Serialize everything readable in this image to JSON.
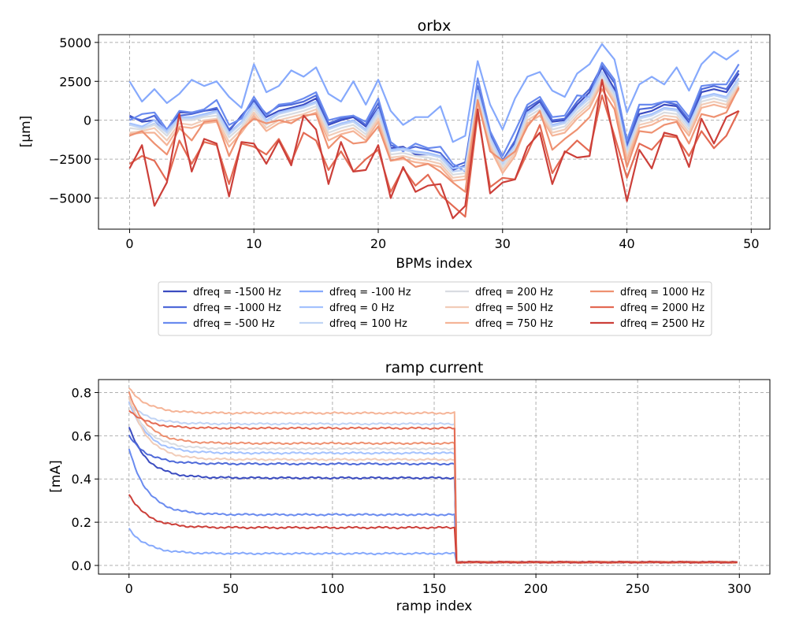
{
  "colors": [
    "#3b4cc0",
    "#4f6ad9",
    "#6a8bef",
    "#86a9fc",
    "#a4c2fe",
    "#c0d4f5",
    "#d9dce1",
    "#f1ccb8",
    "#f5b497",
    "#ee9171",
    "#e36a53",
    "#cc3f39"
  ],
  "chart_data": [
    {
      "type": "line",
      "title": "orbx",
      "xlabel": "BPMs index",
      "ylabel": "[μm]",
      "xlim": [
        -2.5,
        51.5
      ],
      "ylim": [
        -7000,
        5500
      ],
      "xticks": [
        0,
        10,
        20,
        30,
        40,
        50
      ],
      "yticks": [
        -5000,
        -2500,
        0,
        2500,
        5000
      ],
      "ytick_labels": [
        "−5000",
        "−2500",
        "0",
        "2500",
        "5000"
      ],
      "grid": true,
      "x_start": 0,
      "series": [
        {
          "name": "dfreq = -1500 Hz",
          "values": [
            300,
            -100,
            0,
            -800,
            500,
            500,
            600,
            700,
            -700,
            300,
            1200,
            200,
            600,
            800,
            1000,
            1400,
            -300,
            0,
            200,
            -400,
            800,
            -1800,
            -1700,
            -2200,
            -2200,
            -2300,
            -3200,
            -2900,
            2000,
            -1000,
            -2800,
            -1500,
            600,
            1200,
            -100,
            0,
            1000,
            1800,
            3400,
            2000,
            -1800,
            400,
            600,
            1000,
            900,
            -200,
            1800,
            2000,
            1800,
            3000
          ]
        },
        {
          "name": "dfreq = -1000 Hz",
          "values": [
            200,
            0,
            300,
            -800,
            300,
            400,
            600,
            800,
            -600,
            200,
            1300,
            400,
            900,
            1000,
            1200,
            1600,
            -200,
            100,
            300,
            -300,
            1100,
            -1600,
            -1900,
            -1700,
            -1900,
            -2100,
            -3000,
            -2700,
            2200,
            -900,
            -2600,
            -1300,
            800,
            1300,
            0,
            100,
            1200,
            2000,
            3500,
            2400,
            -1600,
            700,
            800,
            1200,
            1000,
            0,
            2000,
            2200,
            2000,
            3200
          ]
        },
        {
          "name": "dfreq = -500 Hz",
          "values": [
            0,
            400,
            500,
            -600,
            600,
            500,
            700,
            1300,
            -300,
            100,
            1500,
            300,
            1000,
            1100,
            1400,
            1800,
            0,
            200,
            300,
            -100,
            1400,
            -1400,
            -2000,
            -1500,
            -1800,
            -1700,
            -2800,
            -3300,
            2700,
            -700,
            -2300,
            -700,
            1000,
            1500,
            200,
            300,
            1600,
            1500,
            3700,
            2600,
            -1300,
            1000,
            1000,
            1200,
            1200,
            200,
            2200,
            2300,
            2300,
            3600
          ]
        },
        {
          "name": "dfreq = -100 Hz",
          "values": [
            2500,
            1200,
            2000,
            1100,
            1700,
            2600,
            2200,
            2500,
            1500,
            800,
            3600,
            1800,
            2200,
            3200,
            2800,
            3400,
            1700,
            1200,
            2500,
            1000,
            2600,
            600,
            -300,
            200,
            200,
            900,
            -1400,
            -1000,
            3800,
            1000,
            -600,
            1400,
            2800,
            3100,
            1900,
            1500,
            3000,
            3600,
            4900,
            3900,
            500,
            2300,
            2800,
            2300,
            3400,
            1900,
            3600,
            4400,
            3900,
            4500
          ]
        },
        {
          "name": "dfreq = 0 Hz",
          "values": [
            -200,
            -400,
            0,
            -700,
            200,
            200,
            400,
            600,
            -800,
            -100,
            1100,
            0,
            500,
            700,
            900,
            1200,
            -500,
            -200,
            0,
            -600,
            700,
            -1900,
            -1800,
            -2000,
            -2100,
            -2300,
            -3100,
            -3000,
            1900,
            -1100,
            -2700,
            -1600,
            500,
            1000,
            -300,
            -100,
            800,
            1600,
            3100,
            1800,
            -1900,
            200,
            400,
            800,
            700,
            -300,
            1500,
            1700,
            1500,
            2700
          ]
        },
        {
          "name": "dfreq = 100 Hz",
          "values": [
            -300,
            -500,
            -200,
            -800,
            100,
            100,
            300,
            500,
            -900,
            -200,
            900,
            -100,
            400,
            600,
            800,
            1100,
            -600,
            -300,
            -100,
            -700,
            500,
            -2000,
            -1900,
            -2100,
            -2200,
            -2400,
            -3300,
            -3200,
            1700,
            -1200,
            -2800,
            -1700,
            400,
            900,
            -400,
            -200,
            700,
            1400,
            3000,
            1700,
            -2000,
            100,
            300,
            700,
            600,
            -400,
            1400,
            1600,
            1400,
            2600
          ]
        },
        {
          "name": "dfreq = 200 Hz",
          "values": [
            -500,
            -600,
            -300,
            -1000,
            0,
            0,
            200,
            300,
            -1100,
            -400,
            700,
            -300,
            200,
            400,
            600,
            900,
            -800,
            -500,
            -300,
            -900,
            300,
            -2200,
            -2100,
            -2300,
            -2400,
            -2600,
            -3500,
            -3400,
            1500,
            -1400,
            -3000,
            -1900,
            200,
            700,
            -600,
            -400,
            500,
            1200,
            2800,
            1500,
            -2200,
            -100,
            100,
            500,
            400,
            -600,
            1200,
            1400,
            1200,
            2400
          ]
        },
        {
          "name": "dfreq = 500 Hz",
          "values": [
            -800,
            -700,
            -500,
            -1300,
            -200,
            -300,
            0,
            100,
            -1400,
            -600,
            500,
            -500,
            0,
            200,
            400,
            700,
            -1000,
            -700,
            -500,
            -1100,
            100,
            -2400,
            -2300,
            -2500,
            -2600,
            -2800,
            -3700,
            -3600,
            1300,
            -1600,
            -3200,
            -2100,
            0,
            500,
            -800,
            -600,
            300,
            1000,
            2600,
            1300,
            -2400,
            -300,
            -100,
            300,
            200,
            -800,
            1000,
            1200,
            1000,
            2200
          ]
        },
        {
          "name": "dfreq = 750 Hz",
          "values": [
            -900,
            -800,
            -800,
            -1600,
            -400,
            -500,
            -200,
            -100,
            -1700,
            -800,
            300,
            -700,
            -200,
            0,
            200,
            500,
            -1300,
            -900,
            -700,
            -1300,
            -100,
            -2600,
            -2500,
            -2700,
            -2800,
            -3000,
            -3900,
            -3800,
            1100,
            -1800,
            -3400,
            -2300,
            -200,
            300,
            -1000,
            -800,
            100,
            800,
            2400,
            1100,
            -2600,
            -500,
            -300,
            100,
            0,
            -1000,
            800,
            1000,
            800,
            2000
          ]
        },
        {
          "name": "dfreq = 1000 Hz",
          "values": [
            -1000,
            -700,
            -1500,
            -2200,
            -500,
            -1300,
            -100,
            0,
            -2300,
            -600,
            100,
            -200,
            0,
            -200,
            300,
            400,
            -1800,
            -1000,
            -1500,
            -1400,
            -400,
            -2600,
            -2400,
            -3000,
            -2800,
            -3300,
            -4000,
            -4600,
            1300,
            -2000,
            -2600,
            -2000,
            -400,
            600,
            -1900,
            -1200,
            -600,
            200,
            2000,
            700,
            -3000,
            -700,
            -800,
            -300,
            -100,
            -1500,
            400,
            200,
            500,
            2100
          ]
        },
        {
          "name": "dfreq = 2000 Hz",
          "values": [
            -2800,
            -2300,
            -2600,
            -3900,
            -1300,
            -2800,
            -1400,
            -1600,
            -4100,
            -1500,
            -1700,
            -2200,
            -1200,
            -2700,
            -800,
            -1300,
            -3200,
            -2000,
            -3300,
            -2500,
            -1900,
            -4600,
            -3100,
            -4200,
            -3500,
            -4800,
            -5500,
            -6200,
            400,
            -4300,
            -3700,
            -3800,
            -2100,
            -300,
            -3400,
            -2100,
            -1300,
            -2000,
            1600,
            -1000,
            -3700,
            -1500,
            -1900,
            -1000,
            -1100,
            -2300,
            -700,
            -1800,
            -1000,
            600
          ]
        },
        {
          "name": "dfreq = 2500 Hz",
          "values": [
            -3100,
            -1600,
            -5500,
            -4000,
            400,
            -3300,
            -1200,
            -1500,
            -4900,
            -1400,
            -1500,
            -2800,
            -1300,
            -2900,
            300,
            -600,
            -4100,
            -1400,
            -3300,
            -3200,
            -1600,
            -5000,
            -3000,
            -4600,
            -4200,
            -4100,
            -6300,
            -5500,
            700,
            -4700,
            -4000,
            -3800,
            -1700,
            -800,
            -4100,
            -2000,
            -2400,
            -2300,
            2600,
            -1400,
            -5200,
            -1900,
            -3100,
            -800,
            -1000,
            -3000,
            100,
            -1500,
            200,
            600
          ]
        }
      ]
    },
    {
      "type": "line",
      "title": "ramp current",
      "xlabel": "ramp index",
      "ylabel": "[mA]",
      "xlim": [
        -15,
        315
      ],
      "ylim": [
        -0.04,
        0.86
      ],
      "xticks": [
        0,
        50,
        100,
        150,
        200,
        250,
        300
      ],
      "yticks": [
        0.0,
        0.2,
        0.4,
        0.6,
        0.8
      ],
      "ytick_labels": [
        "0.0",
        "0.2",
        "0.4",
        "0.6",
        "0.8"
      ],
      "grid": true,
      "n_points": 300,
      "drop_index": 160,
      "series": [
        {
          "name": "dfreq = -1500 Hz",
          "start": 0.64,
          "plateau": 0.405,
          "end": 0.015
        },
        {
          "name": "dfreq = -1000 Hz",
          "start": 0.6,
          "plateau": 0.47,
          "end": 0.015
        },
        {
          "name": "dfreq = -500 Hz",
          "start": 0.54,
          "plateau": 0.235,
          "end": 0.015
        },
        {
          "name": "dfreq = -100 Hz",
          "start": 0.17,
          "plateau": 0.055,
          "end": 0.015
        },
        {
          "name": "dfreq = 0 Hz",
          "start": 0.76,
          "plateau": 0.52,
          "end": 0.015
        },
        {
          "name": "dfreq = 100 Hz",
          "start": 0.75,
          "plateau": 0.655,
          "end": 0.015
        },
        {
          "name": "dfreq = 200 Hz",
          "start": 0.77,
          "plateau": 0.54,
          "end": 0.015
        },
        {
          "name": "dfreq = 500 Hz",
          "start": 0.78,
          "plateau": 0.49,
          "end": 0.015
        },
        {
          "name": "dfreq = 750 Hz",
          "start": 0.82,
          "plateau": 0.705,
          "end": 0.015
        },
        {
          "name": "dfreq = 1000 Hz",
          "start": 0.8,
          "plateau": 0.565,
          "end": 0.015
        },
        {
          "name": "dfreq = 2000 Hz",
          "start": 0.72,
          "plateau": 0.635,
          "end": 0.015
        },
        {
          "name": "dfreq = 2500 Hz",
          "start": 0.33,
          "plateau": 0.175,
          "end": 0.015
        }
      ]
    }
  ]
}
